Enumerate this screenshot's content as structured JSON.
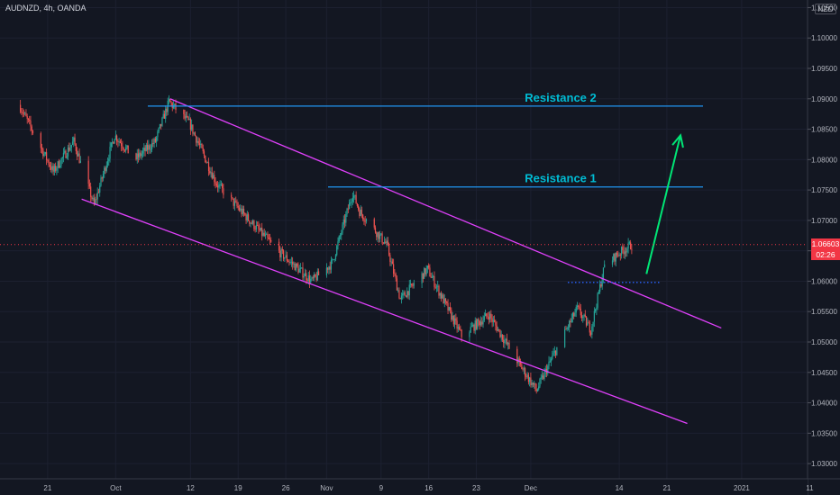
{
  "header": {
    "symbol_line": "AUDNZD, 4h, OANDA"
  },
  "price_axis": {
    "currency_badge": "NZD",
    "last_price_label": "1.06603",
    "countdown_label": "02:26",
    "last_price_color": "#f23645"
  },
  "colors": {
    "background": "#131722",
    "grid": "#1c2030",
    "up_candle": "#26a69a",
    "down_candle": "#ef5350",
    "channel_line": "#e040fb",
    "resistance_line": "#2196f3",
    "resistance_label": "#00bcd4",
    "arrow": "#00e676",
    "breakout_dots": "#2962ff"
  },
  "chart_data": {
    "type": "candlestick",
    "title": "",
    "ylim": [
      1.0275,
      1.10625
    ],
    "y_ticks": [
      "1.10500",
      "1.10000",
      "1.09500",
      "1.09000",
      "1.08500",
      "1.08000",
      "1.07500",
      "1.07000",
      "1.06500",
      "1.06000",
      "1.05500",
      "1.05000",
      "1.04500",
      "1.04000",
      "1.03500",
      "1.03000"
    ],
    "x_ticks": [
      "21",
      "Oct",
      "12",
      "19",
      "26",
      "Nov",
      "9",
      "16",
      "23",
      "Dec",
      "14",
      "21",
      "2021",
      "11"
    ],
    "price_path": [
      {
        "date": "2020-09-17",
        "price": 1.089
      },
      {
        "date": "2020-09-22",
        "price": 1.078
      },
      {
        "date": "2020-09-25",
        "price": 1.083
      },
      {
        "date": "2020-09-28",
        "price": 1.0725
      },
      {
        "date": "2020-10-01",
        "price": 1.084
      },
      {
        "date": "2020-10-04",
        "price": 1.08
      },
      {
        "date": "2020-10-07",
        "price": 1.083
      },
      {
        "date": "2020-10-09",
        "price": 1.0895
      },
      {
        "date": "2020-10-12",
        "price": 1.086
      },
      {
        "date": "2020-10-16",
        "price": 1.076
      },
      {
        "date": "2020-10-20",
        "price": 1.071
      },
      {
        "date": "2020-10-25",
        "price": 1.065
      },
      {
        "date": "2020-10-30",
        "price": 1.06
      },
      {
        "date": "2020-11-02",
        "price": 1.063
      },
      {
        "date": "2020-11-05",
        "price": 1.0745
      },
      {
        "date": "2020-11-06",
        "price": 1.0715
      },
      {
        "date": "2020-11-10",
        "price": 1.066
      },
      {
        "date": "2020-11-12",
        "price": 1.057
      },
      {
        "date": "2020-11-16",
        "price": 1.062
      },
      {
        "date": "2020-11-21",
        "price": 1.051
      },
      {
        "date": "2020-11-25",
        "price": 1.0545
      },
      {
        "date": "2020-11-28",
        "price": 1.049
      },
      {
        "date": "2020-12-02",
        "price": 1.042
      },
      {
        "date": "2020-12-05",
        "price": 1.049
      },
      {
        "date": "2020-12-08",
        "price": 1.0555
      },
      {
        "date": "2020-12-10",
        "price": 1.052
      },
      {
        "date": "2020-12-12",
        "price": 1.0625
      },
      {
        "date": "2020-12-14",
        "price": 1.0645
      },
      {
        "date": "2020-12-16",
        "price": 1.066
      }
    ],
    "drawings": {
      "channel_upper": [
        {
          "date": "2020-10-09",
          "price": 1.09
        },
        {
          "date": "2020-12-29",
          "price": 1.0523
        }
      ],
      "channel_lower": [
        {
          "date": "2020-09-26",
          "price": 1.0735
        },
        {
          "date": "2020-12-24",
          "price": 1.0366
        }
      ],
      "resistance_1": {
        "label": "Resistance 1",
        "price": 1.0755
      },
      "resistance_2": {
        "label": "Resistance 2",
        "price": 1.0888
      },
      "breakout_level": {
        "price": 1.0598
      },
      "projection_arrow": [
        {
          "date": "2020-12-18",
          "price": 1.0612
        },
        {
          "date": "2020-12-23",
          "price": 1.084
        }
      ]
    }
  }
}
